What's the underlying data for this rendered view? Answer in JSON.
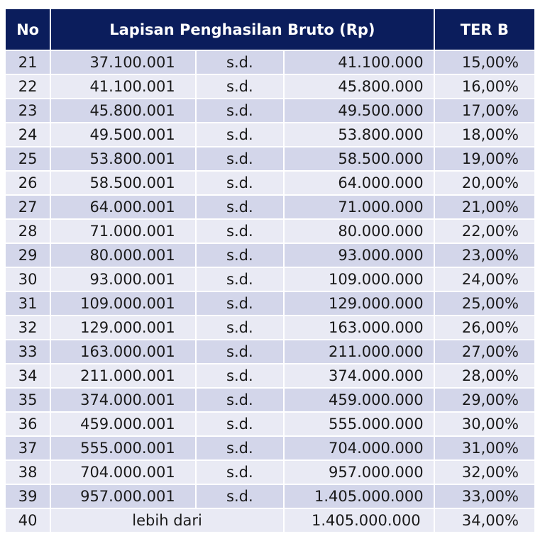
{
  "table": {
    "headers": {
      "no": "No",
      "range": "Lapisan Penghasilan Bruto (Rp)",
      "rate": "TER B"
    },
    "separator": "s.d.",
    "rows": [
      {
        "no": "21",
        "from": "37.100.001",
        "to": "41.100.000",
        "rate": "15,00%"
      },
      {
        "no": "22",
        "from": "41.100.001",
        "to": "45.800.000",
        "rate": "16,00%"
      },
      {
        "no": "23",
        "from": "45.800.001",
        "to": "49.500.000",
        "rate": "17,00%"
      },
      {
        "no": "24",
        "from": "49.500.001",
        "to": "53.800.000",
        "rate": "18,00%"
      },
      {
        "no": "25",
        "from": "53.800.001",
        "to": "58.500.000",
        "rate": "19,00%"
      },
      {
        "no": "26",
        "from": "58.500.001",
        "to": "64.000.000",
        "rate": "20,00%"
      },
      {
        "no": "27",
        "from": "64.000.001",
        "to": "71.000.000",
        "rate": "21,00%"
      },
      {
        "no": "28",
        "from": "71.000.001",
        "to": "80.000.000",
        "rate": "22,00%"
      },
      {
        "no": "29",
        "from": "80.000.001",
        "to": "93.000.000",
        "rate": "23,00%"
      },
      {
        "no": "30",
        "from": "93.000.001",
        "to": "109.000.000",
        "rate": "24,00%"
      },
      {
        "no": "31",
        "from": "109.000.001",
        "to": "129.000.000",
        "rate": "25,00%"
      },
      {
        "no": "32",
        "from": "129.000.001",
        "to": "163.000.000",
        "rate": "26,00%"
      },
      {
        "no": "33",
        "from": "163.000.001",
        "to": "211.000.000",
        "rate": "27,00%"
      },
      {
        "no": "34",
        "from": "211.000.001",
        "to": "374.000.000",
        "rate": "28,00%"
      },
      {
        "no": "35",
        "from": "374.000.001",
        "to": "459.000.000",
        "rate": "29,00%"
      },
      {
        "no": "36",
        "from": "459.000.001",
        "to": "555.000.000",
        "rate": "30,00%"
      },
      {
        "no": "37",
        "from": "555.000.001",
        "to": "704.000.000",
        "rate": "31,00%"
      },
      {
        "no": "38",
        "from": "704.000.001",
        "to": "957.000.000",
        "rate": "32,00%"
      },
      {
        "no": "39",
        "from": "957.000.001",
        "to": "1.405.000.000",
        "rate": "33,00%"
      }
    ],
    "last_row": {
      "no": "40",
      "label": "lebih dari",
      "to": "1.405.000.000",
      "rate": "34,00%"
    }
  }
}
